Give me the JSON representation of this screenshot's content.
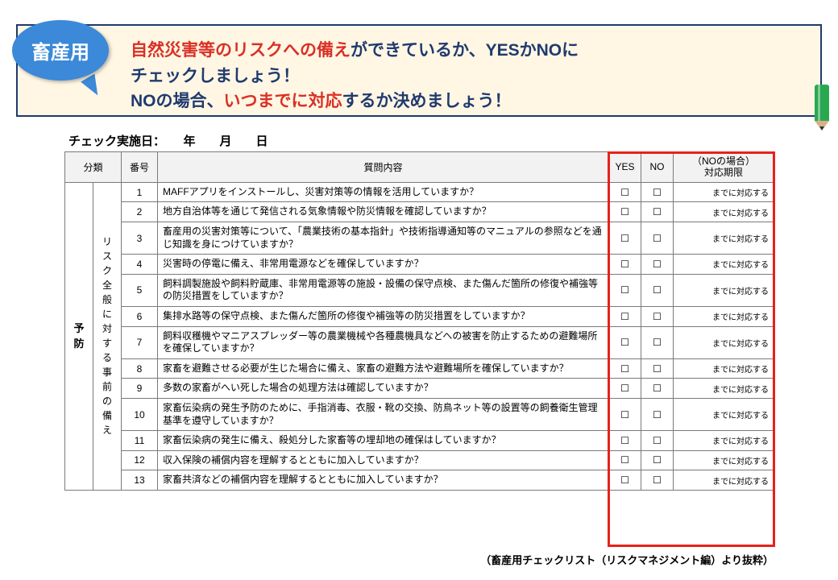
{
  "bubble_label": "畜産用",
  "header": {
    "line1_red": "自然災害等のリスクへの備え",
    "line1_rest": "ができているか、YESかNOに",
    "line2": "チェックしましょう！",
    "line3_pre": "NOの場合、",
    "line3_red": "いつまでに対応",
    "line3_post": "するか決めましょう！"
  },
  "date_label": "チェック実施日：　　年　　月　　日",
  "columns": {
    "cat": "分類",
    "num": "番号",
    "q": "質問内容",
    "yes": "YES",
    "no": "NO",
    "due1": "（NOの場合）",
    "due2": "対応期限"
  },
  "cat1": "予防",
  "cat2": "リスク全般に対する事前の備え",
  "checkbox": "☐",
  "due_text": "までに対応する",
  "rows": [
    {
      "n": "1",
      "q": "MAFFアプリをインストールし、災害対策等の情報を活用していますか？"
    },
    {
      "n": "2",
      "q": "地方自治体等を通じて発信される気象情報や防災情報を確認していますか？"
    },
    {
      "n": "3",
      "q": "畜産用の災害対策等について、「農業技術の基本指針」や技術指導通知等のマニュアルの参照などを通じ知識を身につけていますか？"
    },
    {
      "n": "4",
      "q": "災害時の停電に備え、非常用電源などを確保していますか？"
    },
    {
      "n": "5",
      "q": "飼料調製施設や飼料貯蔵庫、非常用電源等の施設・設備の保守点検、また傷んだ箇所の修復や補強等の防災措置をしていますか？"
    },
    {
      "n": "6",
      "q": "集排水路等の保守点検、また傷んだ箇所の修復や補強等の防災措置をしていますか？"
    },
    {
      "n": "7",
      "q": "飼料収穫機やマニアスプレッダー等の農業機械や各種農機具などへの被害を防止するための避難場所を確保していますか？"
    },
    {
      "n": "8",
      "q": "家畜を避難させる必要が生じた場合に備え、家畜の避難方法や避難場所を確保していますか？"
    },
    {
      "n": "9",
      "q": "多数の家畜がへい死した場合の処理方法は確認していますか？"
    },
    {
      "n": "10",
      "q": "家畜伝染病の発生予防のために、手指消毒、衣服・靴の交換、防鳥ネット等の設置等の飼養衛生管理基準を遵守していますか？"
    },
    {
      "n": "11",
      "q": "家畜伝染病の発生に備え、殺処分した家畜等の埋却地の確保はしていますか？"
    },
    {
      "n": "12",
      "q": "収入保険の補償内容を理解するとともに加入していますか？"
    },
    {
      "n": "13",
      "q": "家畜共済などの補償内容を理解するとともに加入していますか？"
    }
  ],
  "footer": "（畜産用チェックリスト（リスクマネジメント編）より抜粋）",
  "colors": {
    "bubble": "#3b89d8",
    "header_bg": "#fff6e4",
    "header_border": "#1f3a6e",
    "red": "#d93025",
    "frame_red": "#e8211a",
    "pencil": "#2aa84f"
  }
}
